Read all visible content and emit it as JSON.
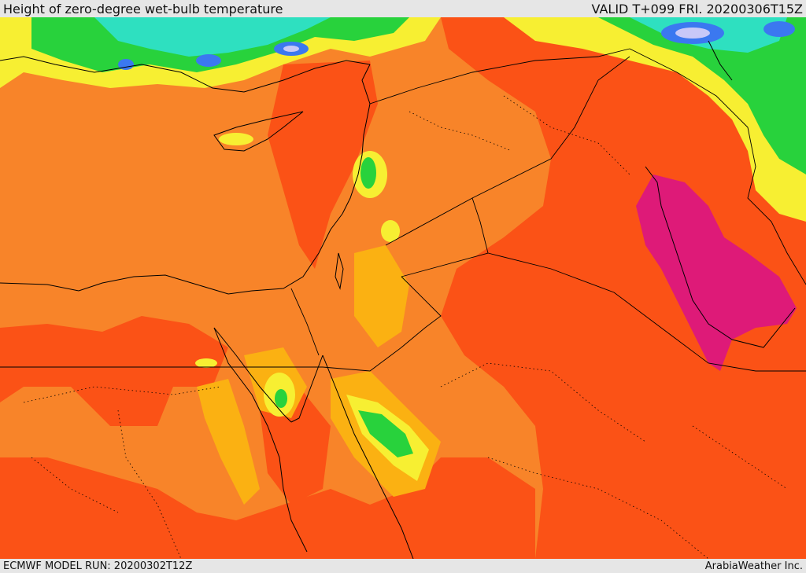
{
  "header": {
    "title": "Height of zero-degree wet-bulb temperature",
    "valid": "VALID T+099 FRI. 20200306T15Z"
  },
  "footer": {
    "model_run": "ECMWF MODEL RUN: 20200302T12Z",
    "brand": "ArabiaWeather Inc."
  },
  "palette": {
    "deep_orange": "#fb5216",
    "orange": "#f88429",
    "amber": "#fbb112",
    "yellow": "#f7ef32",
    "light_green": "#a8e630",
    "green": "#28d23c",
    "aqua": "#2ee0c0",
    "blue": "#3b78f0",
    "lavender": "#c8c8f8",
    "magenta": "#de1a78",
    "background": "#e6e6e6"
  }
}
